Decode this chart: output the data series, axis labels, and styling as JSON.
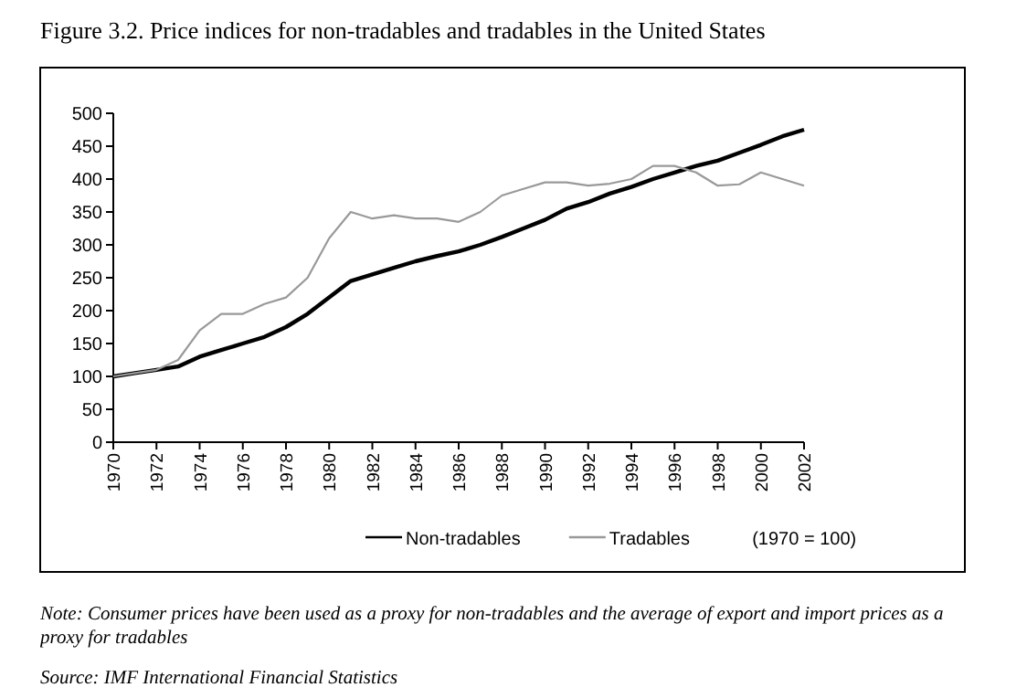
{
  "chart_data": {
    "type": "line",
    "title": "Figure 3.2. Price indices for non-tradables and tradables in the United States",
    "x": [
      1970,
      1971,
      1972,
      1973,
      1974,
      1975,
      1976,
      1977,
      1978,
      1979,
      1980,
      1981,
      1982,
      1983,
      1984,
      1985,
      1986,
      1987,
      1988,
      1989,
      1990,
      1991,
      1992,
      1993,
      1994,
      1995,
      1996,
      1997,
      1998,
      1999,
      2000,
      2001,
      2002
    ],
    "series": [
      {
        "name": "Non-tradables",
        "color": "#000000",
        "values": [
          100,
          105,
          110,
          115,
          130,
          140,
          150,
          160,
          175,
          195,
          220,
          245,
          255,
          265,
          275,
          283,
          290,
          300,
          312,
          325,
          338,
          355,
          365,
          378,
          388,
          400,
          410,
          420,
          428,
          440,
          452,
          465,
          475
        ]
      },
      {
        "name": "Tradables",
        "color": "#999999",
        "values": [
          100,
          105,
          110,
          125,
          170,
          195,
          195,
          210,
          220,
          250,
          310,
          350,
          340,
          345,
          340,
          340,
          335,
          350,
          375,
          385,
          395,
          395,
          390,
          393,
          400,
          420,
          420,
          410,
          390,
          392,
          410,
          400,
          390
        ]
      }
    ],
    "xlim": [
      1970,
      2002
    ],
    "xticks": [
      1970,
      1972,
      1974,
      1976,
      1978,
      1980,
      1982,
      1984,
      1986,
      1988,
      1990,
      1992,
      1994,
      1996,
      1998,
      2000,
      2002
    ],
    "ylim": [
      0,
      500
    ],
    "yticks": [
      0,
      50,
      100,
      150,
      200,
      250,
      300,
      350,
      400,
      450,
      500
    ],
    "legend": "bottom",
    "grid": false,
    "line_style": "solid",
    "marker": "none",
    "annotations": [
      "(1970 = 100)",
      "Note: Consumer prices have been used as a proxy for non-tradables and the average of export and import prices as a proxy for tradables",
      "Source: IMF International Financial Statistics"
    ]
  }
}
